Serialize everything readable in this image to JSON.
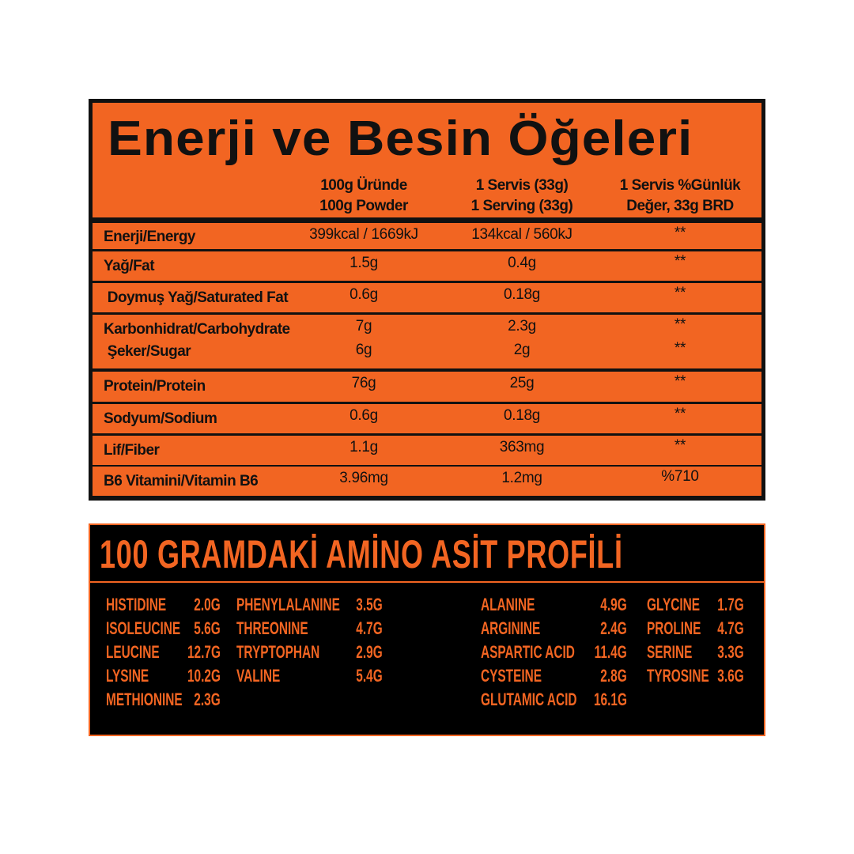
{
  "colors": {
    "orange": "#F26522",
    "black": "#111111"
  },
  "nutrition": {
    "title": "Enerji ve Besin Öğeleri",
    "columns": [
      {
        "line1": "100g Üründe",
        "line2": "100g Powder"
      },
      {
        "line1": "1 Servis (33g)",
        "line2": "1 Serving (33g)"
      },
      {
        "line1": "1 Servis %Günlük",
        "line2": "Değer, 33g BRD"
      }
    ],
    "rows": [
      {
        "label": "Enerji/Energy",
        "v": [
          "399kcal / 1669kJ",
          "134kcal / 560kJ",
          "**"
        ]
      },
      {
        "label": "Yağ/Fat",
        "v": [
          "1.5g",
          "0.4g",
          "**"
        ]
      },
      {
        "label": " Doymuş Yağ/Saturated Fat",
        "v": [
          "0.6g",
          "0.18g",
          "**"
        ]
      },
      {
        "label": "Karbonhidrat/Carbohydrate",
        "v": [
          "7g",
          "2.3g",
          "**"
        ],
        "sub": {
          "label": " Şeker/Sugar",
          "v": [
            "6g",
            "2g",
            "**"
          ]
        }
      },
      {
        "label": "Protein/Protein",
        "v": [
          "76g",
          "25g",
          "**"
        ]
      },
      {
        "label": "Sodyum/Sodium",
        "v": [
          "0.6g",
          "0.18g",
          "**"
        ]
      },
      {
        "label": "Lif/Fiber",
        "v": [
          "1.1g",
          "363mg",
          "**"
        ]
      },
      {
        "label": "B6 Vitamini/Vitamin B6",
        "v": [
          "3.96mg",
          "1.2mg",
          "%710"
        ]
      }
    ]
  },
  "amino": {
    "title": "100 GRAMDAKİ AMİNO ASİT PROFİLİ",
    "columns": [
      [
        {
          "n": "HISTIDINE",
          "v": "2.0G"
        },
        {
          "n": "ISOLEUCINE",
          "v": "5.6G"
        },
        {
          "n": "LEUCINE",
          "v": "12.7G"
        },
        {
          "n": "LYSINE",
          "v": "10.2G"
        },
        {
          "n": "METHIONINE",
          "v": "2.3G"
        }
      ],
      [
        {
          "n": "PHENYLALANINE",
          "v": "3.5G"
        },
        {
          "n": "THREONINE",
          "v": "4.7G"
        },
        {
          "n": "TRYPTOPHAN",
          "v": "2.9G"
        },
        {
          "n": "VALINE",
          "v": "5.4G"
        }
      ],
      [
        {
          "n": "ALANINE",
          "v": "4.9G"
        },
        {
          "n": "ARGININE",
          "v": "2.4G"
        },
        {
          "n": "ASPARTIC ACID",
          "v": "11.4G"
        },
        {
          "n": "CYSTEINE",
          "v": "2.8G"
        },
        {
          "n": "GLUTAMIC ACID",
          "v": "16.1G"
        }
      ],
      [
        {
          "n": "GLYCINE",
          "v": "1.7G"
        },
        {
          "n": "PROLINE",
          "v": "4.7G"
        },
        {
          "n": "SERINE",
          "v": "3.3G"
        },
        {
          "n": "TYROSINE",
          "v": "3.6G"
        }
      ]
    ]
  }
}
